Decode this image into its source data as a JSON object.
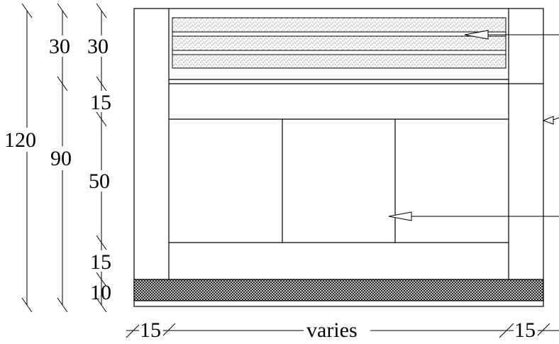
{
  "dimensions": {
    "total_height": "120",
    "upper_height": "90",
    "base_height": "30",
    "segment_top": "30",
    "segment_beam": "15",
    "segment_panel": "50",
    "segment_lower": "15",
    "segment_footing": "10",
    "width_left": "15",
    "width_middle": "varies",
    "width_right": "15"
  },
  "colors": {
    "line": "#000000",
    "footing_fill": "#000000",
    "background": "#ffffff"
  },
  "icons": {
    "arrow": "arrow-left-icon",
    "footing_pattern": "crosshatch",
    "layer_pattern": "stipple"
  }
}
